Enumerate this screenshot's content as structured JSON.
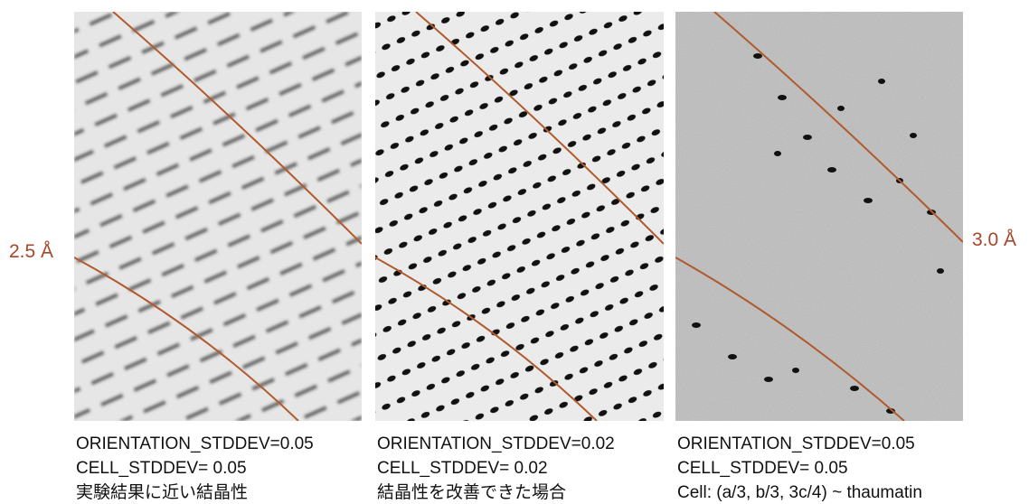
{
  "labels": {
    "left": "2.5 Å",
    "right": "3.0 Å"
  },
  "panels": [
    {
      "caption": [
        "ORIENTATION_STDDEV=0.05",
        "CELL_STDDEV= 0.05",
        "実験結果に近い結晶性"
      ]
    },
    {
      "caption": [
        "ORIENTATION_STDDEV=0.02",
        "CELL_STDDEV= 0.02",
        "結晶性を改善できた場合"
      ]
    },
    {
      "caption": [
        "ORIENTATION_STDDEV=0.05",
        "CELL_STDDEV= 0.05",
        "Cell: (a/3, b/3, 3c/4) ~ thaumatin"
      ]
    }
  ]
}
